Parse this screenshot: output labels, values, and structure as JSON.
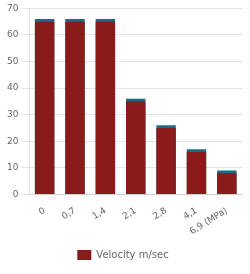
{
  "chart_data": {
    "type": "bar",
    "categories": [
      "0",
      "0,7",
      "1,4",
      "2,1",
      "2,8",
      "4,1",
      "6,9 (MPa)"
    ],
    "series": [
      {
        "color": "#1A6A8A",
        "values": [
          66,
          66,
          66,
          36,
          26,
          17,
          9
        ]
      },
      {
        "name": "Velocity m/sec",
        "color": "#8B1A1A",
        "values": [
          65,
          65,
          65,
          35,
          25,
          16,
          8
        ]
      }
    ],
    "ylim": [
      0,
      70
    ],
    "yticks": [
      0,
      10,
      20,
      30,
      40,
      50,
      60,
      70
    ],
    "grid": true,
    "legend": "bottom"
  }
}
